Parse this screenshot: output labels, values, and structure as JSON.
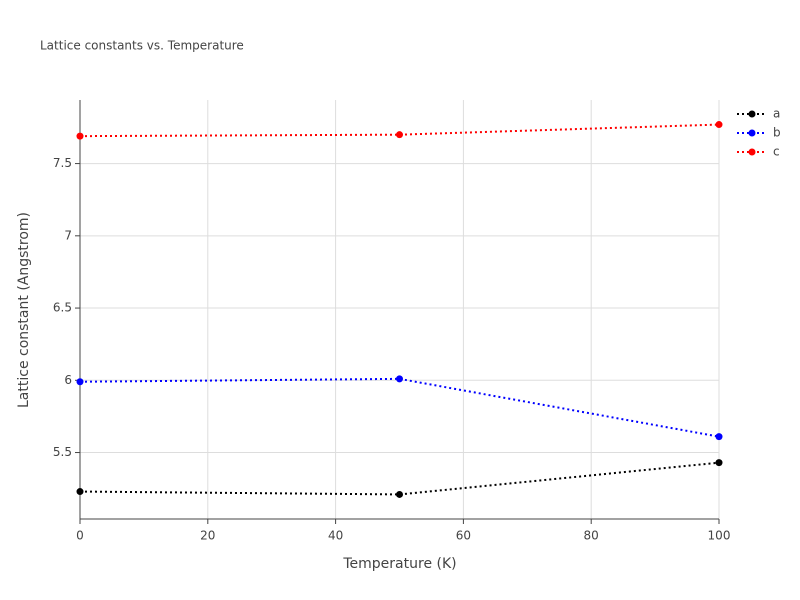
{
  "chart_data": {
    "type": "line",
    "title": "Lattice constants vs. Temperature",
    "x_label": "Temperature (K)",
    "y_label": "Lattice constant (Angstrom)",
    "x": [
      0,
      50,
      100
    ],
    "series": [
      {
        "name": "a",
        "color": "#000000",
        "values": [
          5.23,
          5.21,
          5.43
        ]
      },
      {
        "name": "b",
        "color": "#0000ff",
        "values": [
          5.99,
          6.01,
          5.61
        ]
      },
      {
        "name": "c",
        "color": "#ff0000",
        "values": [
          7.69,
          7.7,
          7.77
        ]
      }
    ],
    "xlim": [
      0,
      100
    ],
    "xticks": [
      0,
      20,
      40,
      60,
      80,
      100
    ],
    "ylim": [
      5.04,
      7.94
    ],
    "yticks": [
      5.5,
      6,
      6.5,
      7,
      7.5
    ],
    "grid": true,
    "legend": "top-right"
  }
}
